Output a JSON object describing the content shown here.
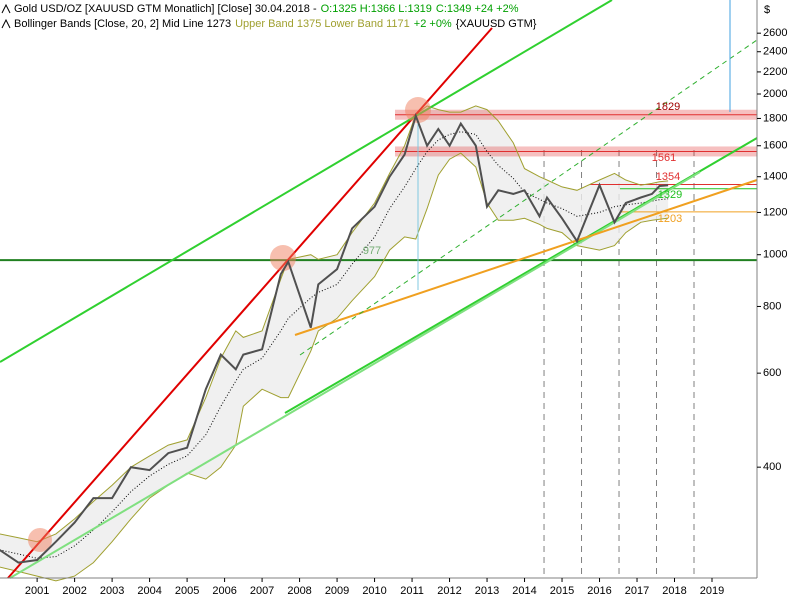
{
  "chart_data": {
    "type": "line",
    "header": [
      [
        {
          "text": "Gold USD/OZ [XAUUSD GTM  Monatlich] [Close] 30.04.2018 -",
          "color": "#000000"
        },
        {
          "text": "O:1325 H:1366 L:1319",
          "color": "#00a000"
        },
        {
          "text": "C:1349 +24 +2%",
          "color": "#00a000"
        }
      ],
      [
        {
          "text": "Bollinger Bands [Close, 20, 2] Mid Line 1273",
          "color": "#000000"
        },
        {
          "text": "Upper Band 1375 Lower Band 1171",
          "color": "#a0a030"
        },
        {
          "text": "+2 +0%",
          "color": "#00a000"
        },
        {
          "text": "{XAUUSD GTM}",
          "color": "#000000"
        }
      ]
    ],
    "y_axis_label": "$",
    "log_y": true,
    "x": [
      2000.5,
      2001.0,
      2001.5,
      2002.0,
      2002.5,
      2003.0,
      2003.5,
      2004.0,
      2004.5,
      2005.0,
      2005.5,
      2006.0,
      2006.4,
      2006.8,
      2007.0,
      2007.5,
      2008.0,
      2008.2,
      2008.8,
      2009.0,
      2009.5,
      2009.9,
      2010.5,
      2010.9,
      2011.3,
      2011.6,
      2011.9,
      2012.2,
      2012.5,
      2012.8,
      2013.2,
      2013.5,
      2013.8,
      2014.2,
      2014.5,
      2014.9,
      2015.1,
      2015.5,
      2015.9,
      2016.5,
      2016.9,
      2017.2,
      2017.6,
      2017.9,
      2018.1,
      2018.33
    ],
    "series": [
      {
        "name": "Gold USD/OZ",
        "color": "#505050",
        "values": [
          280,
          265,
          268,
          290,
          315,
          350,
          350,
          400,
          395,
          425,
          435,
          560,
          650,
          610,
          650,
          665,
          920,
          970,
          730,
          880,
          940,
          1120,
          1230,
          1400,
          1540,
          1820,
          1600,
          1720,
          1600,
          1760,
          1600,
          1230,
          1320,
          1300,
          1320,
          1180,
          1280,
          1170,
          1060,
          1350,
          1150,
          1250,
          1280,
          1300,
          1345,
          1349
        ]
      },
      {
        "name": "Mid Line",
        "color": "#000000",
        "values": [
          280,
          275,
          270,
          272,
          285,
          305,
          330,
          360,
          385,
          405,
          420,
          460,
          520,
          580,
          610,
          640,
          720,
          760,
          830,
          850,
          880,
          960,
          1080,
          1220,
          1340,
          1450,
          1560,
          1640,
          1680,
          1700,
          1680,
          1560,
          1470,
          1390,
          1310,
          1270,
          1250,
          1220,
          1180,
          1200,
          1230,
          1240,
          1250,
          1260,
          1268,
          1273
        ]
      },
      {
        "name": "Upper Band",
        "color": "#a0a030",
        "values": [
          300,
          295,
          290,
          300,
          320,
          345,
          370,
          400,
          420,
          440,
          450,
          540,
          640,
          720,
          700,
          720,
          900,
          980,
          1000,
          980,
          1000,
          1100,
          1250,
          1420,
          1600,
          1830,
          1900,
          1870,
          1850,
          1850,
          1900,
          1870,
          1780,
          1620,
          1450,
          1400,
          1380,
          1340,
          1320,
          1380,
          1420,
          1380,
          1350,
          1360,
          1370,
          1375
        ]
      },
      {
        "name": "Lower Band",
        "color": "#a0a030",
        "values": [
          260,
          255,
          250,
          245,
          250,
          265,
          290,
          320,
          350,
          370,
          390,
          380,
          400,
          440,
          520,
          560,
          540,
          540,
          660,
          720,
          760,
          820,
          910,
          1020,
          1080,
          1070,
          1220,
          1410,
          1510,
          1550,
          1460,
          1250,
          1160,
          1160,
          1170,
          1140,
          1120,
          1100,
          1040,
          1020,
          1040,
          1100,
          1150,
          1160,
          1165,
          1171
        ]
      }
    ],
    "levels": [
      {
        "value": 1829,
        "color": "#e03030"
      },
      {
        "value": 1561,
        "color": "#e03030"
      },
      {
        "value": 1354,
        "color": "#e03030"
      },
      {
        "value": 1329,
        "color": "#20c020"
      },
      {
        "value": 1203,
        "color": "#f0a020"
      },
      {
        "value": 977,
        "color": "#208020"
      }
    ],
    "xlim": [
      2000.51,
      2020.7
    ],
    "ylim": [
      248,
      3000
    ],
    "xticks": [
      {
        "value": 2001.5,
        "label": "2001"
      },
      {
        "value": 2002.5,
        "label": "2002"
      },
      {
        "value": 2003.5,
        "label": "2003"
      },
      {
        "value": 2004.5,
        "label": "2004"
      },
      {
        "value": 2005.5,
        "label": "2005"
      },
      {
        "value": 2006.5,
        "label": "2006"
      },
      {
        "value": 2007.5,
        "label": "2007"
      },
      {
        "value": 2008.5,
        "label": "2008"
      },
      {
        "value": 2009.5,
        "label": "2009"
      },
      {
        "value": 2010.5,
        "label": "2010"
      },
      {
        "value": 2011.5,
        "label": "2011"
      },
      {
        "value": 2012.5,
        "label": "2012"
      },
      {
        "value": 2013.5,
        "label": "2013"
      },
      {
        "value": 2014.5,
        "label": "2014"
      },
      {
        "value": 2015.5,
        "label": "2015"
      },
      {
        "value": 2016.5,
        "label": "2016"
      },
      {
        "value": 2017.5,
        "label": "2017"
      },
      {
        "value": 2018.5,
        "label": "2018"
      },
      {
        "value": 2019.5,
        "label": "2019"
      }
    ],
    "yticks": [
      400,
      600,
      800,
      1000,
      1200,
      1400,
      1600,
      1800,
      2000,
      2200,
      2400,
      2600
    ]
  }
}
